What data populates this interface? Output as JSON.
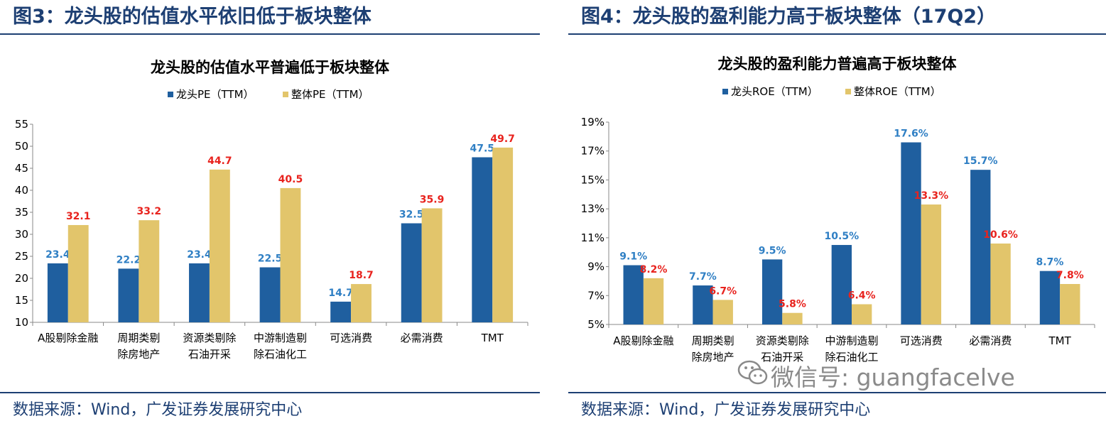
{
  "colors": {
    "leader": "#1f5f9f",
    "overall": "#e2c56b",
    "label_leader": "#2f7fc4",
    "label_overall": "#e8231e",
    "header": "#1d3f73"
  },
  "left": {
    "fig_title": "图3：龙头股的估值水平依旧低于板块整体",
    "source": "数据来源：Wind，广发证券发展研究中心"
  },
  "right": {
    "fig_title": "图4：龙头股的盈利能力高于板块整体（17Q2）",
    "source": "数据来源：Wind，广发证券发展研究中心",
    "watermark": "微信号: guangfacelve",
    "watermark_icon": "wechat-icon"
  },
  "chart_data": [
    {
      "type": "bar",
      "title": "龙头股的估值水平普遍低于板块整体",
      "categories": [
        [
          "A股剔除金融"
        ],
        [
          "周期类剔",
          "除房地产"
        ],
        [
          "资源类剔除",
          "石油开采"
        ],
        [
          "中游制造剔",
          "除石油化工"
        ],
        [
          "可选消费"
        ],
        [
          "必需消费"
        ],
        [
          "TMT"
        ]
      ],
      "series": [
        {
          "name": "龙头PE（TTM）",
          "values": [
            23.4,
            22.2,
            23.4,
            22.5,
            14.7,
            32.5,
            47.5
          ],
          "labels": [
            "23.4",
            "22.2",
            "23.4",
            "22.5",
            "14.7",
            "32.5",
            "47.5"
          ]
        },
        {
          "name": "整体PE（TTM）",
          "values": [
            32.1,
            33.2,
            44.7,
            40.5,
            18.7,
            35.9,
            49.7
          ],
          "labels": [
            "32.1",
            "33.2",
            "44.7",
            "40.5",
            "18.7",
            "35.9",
            "49.7"
          ]
        }
      ],
      "ylim": [
        10,
        55
      ],
      "yticks": [
        "10",
        "15",
        "20",
        "25",
        "30",
        "35",
        "40",
        "45",
        "50",
        "55"
      ],
      "ytick_values": [
        10,
        15,
        20,
        25,
        30,
        35,
        40,
        45,
        50,
        55
      ],
      "legend": "top"
    },
    {
      "type": "bar",
      "title": "龙头股的盈利能力普遍高于板块整体",
      "categories": [
        [
          "A股剔除金融"
        ],
        [
          "周期类剔",
          "除房地产"
        ],
        [
          "资源类剔除",
          "石油开采"
        ],
        [
          "中游制造剔",
          "除石油化工"
        ],
        [
          "可选消费"
        ],
        [
          "必需消费"
        ],
        [
          "TMT"
        ]
      ],
      "series": [
        {
          "name": "龙头ROE（TTM）",
          "values": [
            9.1,
            7.7,
            9.5,
            10.5,
            17.6,
            15.7,
            8.7
          ],
          "labels": [
            "9.1%",
            "7.7%",
            "9.5%",
            "10.5%",
            "17.6%",
            "15.7%",
            "8.7%"
          ]
        },
        {
          "name": "整体ROE（TTM）",
          "values": [
            8.2,
            6.7,
            5.8,
            6.4,
            13.3,
            10.6,
            7.8
          ],
          "labels": [
            "8.2%",
            "6.7%",
            "5.8%",
            "6.4%",
            "13.3%",
            "10.6%",
            "7.8%"
          ]
        }
      ],
      "ylim": [
        5,
        19
      ],
      "yticks": [
        "5%",
        "7%",
        "9%",
        "11%",
        "13%",
        "15%",
        "17%",
        "19%"
      ],
      "ytick_values": [
        5,
        7,
        9,
        11,
        13,
        15,
        17,
        19
      ],
      "legend": "top"
    }
  ]
}
